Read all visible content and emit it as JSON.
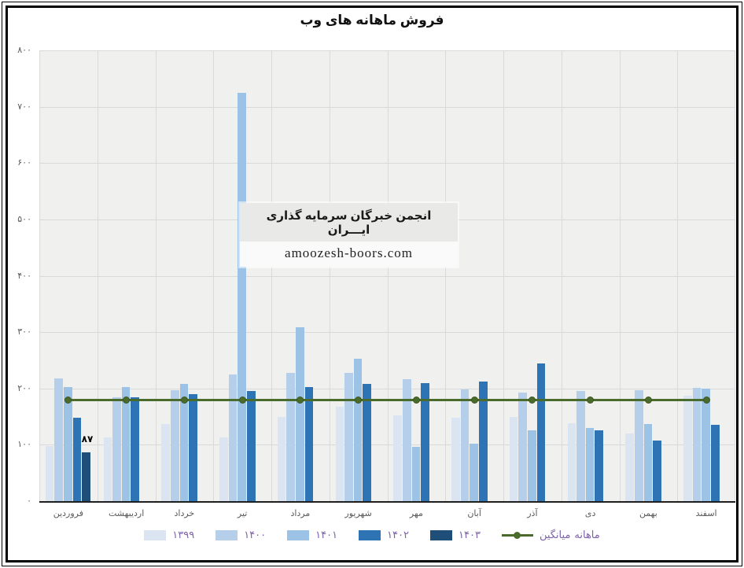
{
  "title": "فروش ماهانه های وب",
  "watermark": {
    "line1": "انجمن خبرگان سرمایه گذاری ایـــران",
    "line2": "amoozesh-boors.com"
  },
  "annotation": {
    "text": "۸۷",
    "value": 87,
    "month": "فروردین",
    "series": "۱۴۰۳"
  },
  "colors": {
    "plot_bg": "#f0f0ef",
    "gridline": "#d9d9d9",
    "axis_text": "#595959",
    "legend_text": "#7d64a8",
    "avg_line": "#4a6b2b",
    "annotation_text": "#000000"
  },
  "chart_data": {
    "type": "bar",
    "title": "فروش ماهانه های وب",
    "categories": [
      "فروردین",
      "اردیبهشت",
      "خرداد",
      "تیر",
      "مرداد",
      "شهریور",
      "مهر",
      "آبان",
      "آذر",
      "دی",
      "بهمن",
      "اسفند"
    ],
    "series": [
      {
        "name": "۱۳۹۹",
        "color": "#dbe5f2",
        "values": [
          98,
          113,
          137,
          113,
          150,
          168,
          152,
          148,
          150,
          138,
          120,
          187
        ]
      },
      {
        "name": "۱۴۰۰",
        "color": "#b5cfeb",
        "values": [
          218,
          185,
          197,
          225,
          228,
          228,
          217,
          198,
          192,
          196,
          197,
          201
        ]
      },
      {
        "name": "۱۴۰۱",
        "color": "#9cc2e5",
        "values": [
          203,
          202,
          208,
          725,
          308,
          253,
          96,
          102,
          126,
          130,
          137,
          199
        ]
      },
      {
        "name": "۱۴۰۲",
        "color": "#2e74b5",
        "values": [
          148,
          185,
          190,
          195,
          203,
          208,
          210,
          212,
          245,
          126,
          107,
          135
        ]
      },
      {
        "name": "۱۴۰۳",
        "color": "#1f4e79",
        "values": [
          87,
          null,
          null,
          null,
          null,
          null,
          null,
          null,
          null,
          null,
          null,
          null
        ]
      }
    ],
    "average_line": {
      "label_words": [
        "میانگین",
        "ماهانه"
      ],
      "value": 180,
      "color": "#4a6b2b"
    },
    "ylim": [
      0,
      800
    ],
    "ytick_step": 100,
    "yticks_values": [
      0,
      100,
      200,
      300,
      400,
      500,
      600,
      700,
      800
    ],
    "yticks_labels": [
      "۰",
      "۱۰۰",
      "۲۰۰",
      "۳۰۰",
      "۴۰۰",
      "۵۰۰",
      "۶۰۰",
      "۷۰۰",
      "۸۰۰"
    ],
    "grid": true,
    "legend_position": "bottom"
  }
}
